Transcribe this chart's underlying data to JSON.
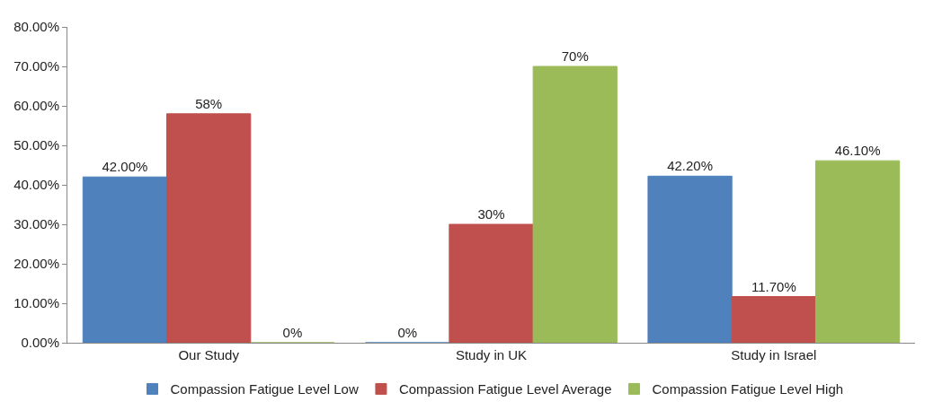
{
  "chart_data": {
    "type": "bar",
    "categories": [
      "Our Study",
      "Study in UK",
      "Study in Israel"
    ],
    "series": [
      {
        "name": "Compassion Fatigue Level Low",
        "color": "#4f81bd",
        "values": [
          42.0,
          0,
          42.2
        ],
        "value_labels": [
          "42.00%",
          "0%",
          "42.20%"
        ]
      },
      {
        "name": "Compassion Fatigue Level Average",
        "color": "#c0504d",
        "values": [
          58,
          30,
          11.7
        ],
        "value_labels": [
          "58%",
          "30%",
          "11.70%"
        ]
      },
      {
        "name": "Compassion Fatigue Level High",
        "color": "#9bbb59",
        "values": [
          0,
          70,
          46.1
        ],
        "value_labels": [
          "0%",
          "70%",
          "46.10%"
        ]
      }
    ],
    "ylim": [
      0,
      80
    ],
    "yticks": [
      {
        "value": 0,
        "label": "0.00%"
      },
      {
        "value": 10,
        "label": "10.00%"
      },
      {
        "value": 20,
        "label": "20.00%"
      },
      {
        "value": 30,
        "label": "30.00%"
      },
      {
        "value": 40,
        "label": "40.00%"
      },
      {
        "value": 50,
        "label": "50.00%"
      },
      {
        "value": 60,
        "label": "60.00%"
      },
      {
        "value": 70,
        "label": "70.00%"
      },
      {
        "value": 80,
        "label": "80.00%"
      }
    ],
    "legend": "bottom"
  }
}
